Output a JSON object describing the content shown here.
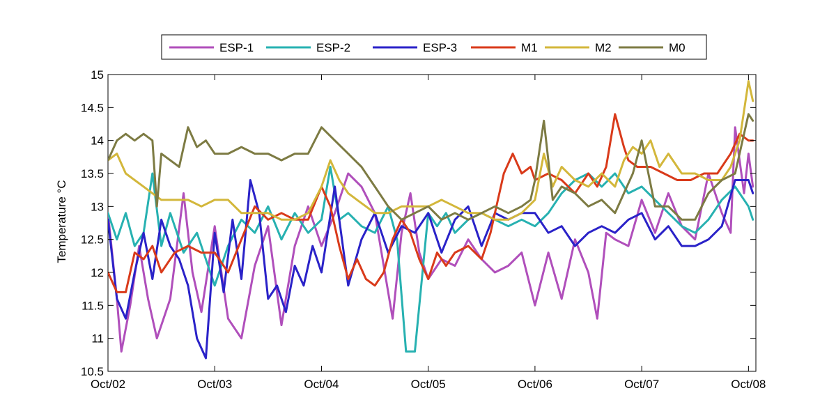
{
  "chart_data": {
    "type": "line",
    "title": "",
    "xlabel": "",
    "ylabel": "Temperature °C",
    "x_unit": "date",
    "xlim": [
      "Oct/02",
      "Oct/08 01:40"
    ],
    "ylim": [
      10.5,
      15
    ],
    "x_ticks": [
      "Oct/02",
      "Oct/03",
      "Oct/04",
      "Oct/05",
      "Oct/06",
      "Oct/07",
      "Oct/08"
    ],
    "y_ticks": [
      "10.5",
      "11",
      "11.5",
      "12",
      "12.5",
      "13",
      "13.5",
      "14",
      "14.5",
      "15"
    ],
    "grid": false,
    "legend_position": "top-center, horizontal, outside",
    "series": [
      {
        "name": "ESP-1",
        "color": "#b04fbb",
        "x": [
          "Oct/02 00:00",
          "Oct/02 02:00",
          "Oct/02 03:00",
          "Oct/02 05:00",
          "Oct/02 07:00",
          "Oct/02 09:00",
          "Oct/02 11:00",
          "Oct/02 14:00",
          "Oct/02 17:00",
          "Oct/02 19:00",
          "Oct/02 21:00",
          "Oct/03 00:00",
          "Oct/03 03:00",
          "Oct/03 06:00",
          "Oct/03 09:00",
          "Oct/03 12:00",
          "Oct/03 15:00",
          "Oct/03 18:00",
          "Oct/03 21:00",
          "Oct/04 00:00",
          "Oct/04 03:00",
          "Oct/04 06:00",
          "Oct/04 09:00",
          "Oct/04 12:00",
          "Oct/04 14:00",
          "Oct/04 16:00",
          "Oct/04 18:00",
          "Oct/04 20:00",
          "Oct/04 22:00",
          "Oct/05 00:00",
          "Oct/05 03:00",
          "Oct/05 06:00",
          "Oct/05 09:00",
          "Oct/05 12:00",
          "Oct/05 15:00",
          "Oct/05 18:00",
          "Oct/05 21:00",
          "Oct/06 00:00",
          "Oct/06 03:00",
          "Oct/06 06:00",
          "Oct/06 09:00",
          "Oct/06 12:00",
          "Oct/06 14:00",
          "Oct/06 16:00",
          "Oct/06 18:00",
          "Oct/06 21:00",
          "Oct/07 00:00",
          "Oct/07 03:00",
          "Oct/07 06:00",
          "Oct/07 09:00",
          "Oct/07 12:00",
          "Oct/07 15:00",
          "Oct/07 18:00",
          "Oct/07 20:00",
          "Oct/07 21:00",
          "Oct/07 23:00",
          "Oct/08 00:00",
          "Oct/08 01:00"
        ],
        "values": [
          12.9,
          11.6,
          10.8,
          11.5,
          12.4,
          11.6,
          11.0,
          11.6,
          13.2,
          12.0,
          11.4,
          12.7,
          11.3,
          11.0,
          12.1,
          12.7,
          11.2,
          12.4,
          13.0,
          12.4,
          12.9,
          13.5,
          13.3,
          12.9,
          12.1,
          11.3,
          12.6,
          13.2,
          12.3,
          11.9,
          12.2,
          12.1,
          12.5,
          12.2,
          12.0,
          12.1,
          12.3,
          11.5,
          12.3,
          11.6,
          12.5,
          12.0,
          11.3,
          12.6,
          12.5,
          12.4,
          13.1,
          12.6,
          13.2,
          12.7,
          12.5,
          13.5,
          12.9,
          12.6,
          14.2,
          13.2,
          13.8,
          13.3
        ]
      },
      {
        "name": "ESP-2",
        "color": "#27b1b1",
        "x": [
          "Oct/02 00:00",
          "Oct/02 02:00",
          "Oct/02 04:00",
          "Oct/02 06:00",
          "Oct/02 08:00",
          "Oct/02 10:00",
          "Oct/02 12:00",
          "Oct/02 14:00",
          "Oct/02 17:00",
          "Oct/02 20:00",
          "Oct/03 00:00",
          "Oct/03 03:00",
          "Oct/03 06:00",
          "Oct/03 09:00",
          "Oct/03 12:00",
          "Oct/03 15:00",
          "Oct/03 18:00",
          "Oct/03 21:00",
          "Oct/04 00:00",
          "Oct/04 02:00",
          "Oct/04 04:00",
          "Oct/04 06:00",
          "Oct/04 09:00",
          "Oct/04 12:00",
          "Oct/04 15:00",
          "Oct/04 17:00",
          "Oct/04 19:00",
          "Oct/04 21:00",
          "Oct/05 00:00",
          "Oct/05 02:00",
          "Oct/05 04:00",
          "Oct/05 06:00",
          "Oct/05 09:00",
          "Oct/05 12:00",
          "Oct/05 15:00",
          "Oct/05 18:00",
          "Oct/05 21:00",
          "Oct/06 00:00",
          "Oct/06 03:00",
          "Oct/06 06:00",
          "Oct/06 09:00",
          "Oct/06 12:00",
          "Oct/06 15:00",
          "Oct/06 18:00",
          "Oct/06 21:00",
          "Oct/07 00:00",
          "Oct/07 03:00",
          "Oct/07 06:00",
          "Oct/07 09:00",
          "Oct/07 12:00",
          "Oct/07 15:00",
          "Oct/07 18:00",
          "Oct/07 21:00",
          "Oct/08 00:00",
          "Oct/08 01:00"
        ],
        "values": [
          12.9,
          12.5,
          12.9,
          12.4,
          12.6,
          13.5,
          12.4,
          12.9,
          12.3,
          12.6,
          11.8,
          12.4,
          12.8,
          12.6,
          13.0,
          12.5,
          12.9,
          12.6,
          12.8,
          13.6,
          12.8,
          12.9,
          12.7,
          12.6,
          13.0,
          12.5,
          10.8,
          10.8,
          12.9,
          12.7,
          12.9,
          12.6,
          12.8,
          12.9,
          12.8,
          12.7,
          12.8,
          12.7,
          12.9,
          13.2,
          13.4,
          13.5,
          13.3,
          13.5,
          13.2,
          13.3,
          13.1,
          12.9,
          12.7,
          12.6,
          12.8,
          13.1,
          13.3,
          13.0,
          12.8
        ]
      },
      {
        "name": "ESP-3",
        "color": "#2a22c8",
        "x": [
          "Oct/02 00:00",
          "Oct/02 02:00",
          "Oct/02 04:00",
          "Oct/02 06:00",
          "Oct/02 08:00",
          "Oct/02 10:00",
          "Oct/02 12:00",
          "Oct/02 14:00",
          "Oct/02 16:00",
          "Oct/02 18:00",
          "Oct/02 20:00",
          "Oct/02 22:00",
          "Oct/03 00:00",
          "Oct/03 02:00",
          "Oct/03 04:00",
          "Oct/03 06:00",
          "Oct/03 08:00",
          "Oct/03 10:00",
          "Oct/03 12:00",
          "Oct/03 14:00",
          "Oct/03 16:00",
          "Oct/03 18:00",
          "Oct/03 20:00",
          "Oct/03 22:00",
          "Oct/04 00:00",
          "Oct/04 03:00",
          "Oct/04 06:00",
          "Oct/04 09:00",
          "Oct/04 12:00",
          "Oct/04 15:00",
          "Oct/04 18:00",
          "Oct/04 21:00",
          "Oct/05 00:00",
          "Oct/05 03:00",
          "Oct/05 06:00",
          "Oct/05 09:00",
          "Oct/05 12:00",
          "Oct/05 15:00",
          "Oct/05 18:00",
          "Oct/05 21:00",
          "Oct/06 00:00",
          "Oct/06 03:00",
          "Oct/06 06:00",
          "Oct/06 09:00",
          "Oct/06 12:00",
          "Oct/06 15:00",
          "Oct/06 18:00",
          "Oct/06 21:00",
          "Oct/07 00:00",
          "Oct/07 03:00",
          "Oct/07 06:00",
          "Oct/07 09:00",
          "Oct/07 12:00",
          "Oct/07 15:00",
          "Oct/07 18:00",
          "Oct/07 21:00",
          "Oct/08 00:00",
          "Oct/08 01:00"
        ],
        "values": [
          12.8,
          11.6,
          11.3,
          12.0,
          12.6,
          11.9,
          12.8,
          12.4,
          12.2,
          11.8,
          11.0,
          10.7,
          12.6,
          11.7,
          12.8,
          11.9,
          13.4,
          12.9,
          11.6,
          11.8,
          11.4,
          12.1,
          11.8,
          12.4,
          12.0,
          13.3,
          11.8,
          12.5,
          12.9,
          12.3,
          12.7,
          12.6,
          12.9,
          12.3,
          12.8,
          13.0,
          12.4,
          12.9,
          12.8,
          12.9,
          12.9,
          12.6,
          12.7,
          12.4,
          12.6,
          12.7,
          12.6,
          12.8,
          12.9,
          12.5,
          12.7,
          12.4,
          12.4,
          12.5,
          12.7,
          13.4,
          13.4,
          13.2
        ]
      },
      {
        "name": "M1",
        "color": "#d93a1a",
        "x": [
          "Oct/02 00:00",
          "Oct/02 02:00",
          "Oct/02 04:00",
          "Oct/02 06:00",
          "Oct/02 08:00",
          "Oct/02 10:00",
          "Oct/02 12:00",
          "Oct/02 15:00",
          "Oct/02 18:00",
          "Oct/02 21:00",
          "Oct/03 00:00",
          "Oct/03 03:00",
          "Oct/03 06:00",
          "Oct/03 09:00",
          "Oct/03 12:00",
          "Oct/03 15:00",
          "Oct/03 18:00",
          "Oct/03 21:00",
          "Oct/04 00:00",
          "Oct/04 02:00",
          "Oct/04 04:00",
          "Oct/04 06:00",
          "Oct/04 08:00",
          "Oct/04 10:00",
          "Oct/04 12:00",
          "Oct/04 14:00",
          "Oct/04 16:00",
          "Oct/04 18:00",
          "Oct/04 20:00",
          "Oct/04 22:00",
          "Oct/05 00:00",
          "Oct/05 02:00",
          "Oct/05 04:00",
          "Oct/05 06:00",
          "Oct/05 09:00",
          "Oct/05 12:00",
          "Oct/05 14:00",
          "Oct/05 15:00",
          "Oct/05 17:00",
          "Oct/05 19:00",
          "Oct/05 21:00",
          "Oct/05 23:00",
          "Oct/06 00:00",
          "Oct/06 03:00",
          "Oct/06 06:00",
          "Oct/06 09:00",
          "Oct/06 12:00",
          "Oct/06 14:00",
          "Oct/06 16:00",
          "Oct/06 18:00",
          "Oct/06 20:00",
          "Oct/06 21:00",
          "Oct/06 23:00",
          "Oct/07 02:00",
          "Oct/07 05:00",
          "Oct/07 08:00",
          "Oct/07 11:00",
          "Oct/07 14:00",
          "Oct/07 17:00",
          "Oct/07 20:00",
          "Oct/07 22:00",
          "Oct/08 00:00",
          "Oct/08 01:00"
        ],
        "values": [
          12.0,
          11.7,
          11.7,
          12.3,
          12.2,
          12.4,
          12.0,
          12.3,
          12.4,
          12.3,
          12.3,
          12.0,
          12.5,
          13.0,
          12.8,
          12.9,
          12.8,
          12.8,
          13.3,
          13.0,
          12.4,
          11.9,
          12.2,
          11.9,
          11.8,
          12.0,
          12.5,
          12.8,
          12.6,
          12.2,
          11.9,
          12.3,
          12.1,
          12.3,
          12.4,
          12.2,
          12.6,
          12.9,
          13.5,
          13.8,
          13.5,
          13.6,
          13.4,
          13.5,
          13.4,
          13.2,
          13.5,
          13.3,
          13.6,
          14.4,
          13.9,
          13.7,
          13.6,
          13.6,
          13.5,
          13.4,
          13.4,
          13.5,
          13.5,
          13.8,
          14.1,
          14.0,
          14.0
        ]
      },
      {
        "name": "M2",
        "color": "#d3b73b",
        "x": [
          "Oct/02 00:00",
          "Oct/02 02:00",
          "Oct/02 04:00",
          "Oct/02 06:00",
          "Oct/02 08:00",
          "Oct/02 10:00",
          "Oct/02 12:00",
          "Oct/02 15:00",
          "Oct/02 18:00",
          "Oct/02 21:00",
          "Oct/03 00:00",
          "Oct/03 03:00",
          "Oct/03 06:00",
          "Oct/03 09:00",
          "Oct/03 12:00",
          "Oct/03 15:00",
          "Oct/03 18:00",
          "Oct/03 21:00",
          "Oct/04 00:00",
          "Oct/04 02:00",
          "Oct/04 04:00",
          "Oct/04 06:00",
          "Oct/04 08:00",
          "Oct/04 10:00",
          "Oct/04 12:00",
          "Oct/04 15:00",
          "Oct/04 18:00",
          "Oct/04 21:00",
          "Oct/05 00:00",
          "Oct/05 03:00",
          "Oct/05 06:00",
          "Oct/05 09:00",
          "Oct/05 12:00",
          "Oct/05 15:00",
          "Oct/05 18:00",
          "Oct/05 21:00",
          "Oct/06 00:00",
          "Oct/06 02:00",
          "Oct/06 04:00",
          "Oct/06 06:00",
          "Oct/06 09:00",
          "Oct/06 12:00",
          "Oct/06 15:00",
          "Oct/06 18:00",
          "Oct/06 20:00",
          "Oct/06 22:00",
          "Oct/07 00:00",
          "Oct/07 02:00",
          "Oct/07 04:00",
          "Oct/07 06:00",
          "Oct/07 09:00",
          "Oct/07 12:00",
          "Oct/07 15:00",
          "Oct/07 18:00",
          "Oct/07 20:00",
          "Oct/07 22:00",
          "Oct/08 00:00",
          "Oct/08 01:00"
        ],
        "values": [
          13.7,
          13.8,
          13.5,
          13.4,
          13.3,
          13.2,
          13.1,
          13.1,
          13.1,
          13.0,
          13.1,
          13.1,
          12.9,
          12.9,
          12.9,
          12.8,
          12.8,
          12.9,
          13.3,
          13.7,
          13.4,
          13.2,
          13.1,
          13.0,
          12.9,
          12.9,
          13.0,
          13.0,
          13.0,
          13.1,
          13.0,
          12.9,
          12.9,
          12.8,
          12.8,
          12.9,
          13.1,
          13.8,
          13.3,
          13.6,
          13.4,
          13.3,
          13.5,
          13.3,
          13.7,
          13.9,
          13.8,
          14.0,
          13.6,
          13.8,
          13.5,
          13.5,
          13.4,
          13.4,
          13.6,
          14.0,
          14.9,
          14.6
        ]
      },
      {
        "name": "M0",
        "color": "#7d7b43",
        "x": [
          "Oct/02 00:00",
          "Oct/02 02:00",
          "Oct/02 04:00",
          "Oct/02 06:00",
          "Oct/02 08:00",
          "Oct/02 10:00",
          "Oct/02 11:00",
          "Oct/02 12:00",
          "Oct/02 14:00",
          "Oct/02 16:00",
          "Oct/02 18:00",
          "Oct/02 20:00",
          "Oct/02 22:00",
          "Oct/03 00:00",
          "Oct/03 03:00",
          "Oct/03 06:00",
          "Oct/03 09:00",
          "Oct/03 12:00",
          "Oct/03 15:00",
          "Oct/03 18:00",
          "Oct/03 21:00",
          "Oct/04 00:00",
          "Oct/04 03:00",
          "Oct/04 06:00",
          "Oct/04 09:00",
          "Oct/04 12:00",
          "Oct/04 15:00",
          "Oct/04 18:00",
          "Oct/04 21:00",
          "Oct/05 00:00",
          "Oct/05 03:00",
          "Oct/05 06:00",
          "Oct/05 09:00",
          "Oct/05 12:00",
          "Oct/05 15:00",
          "Oct/05 18:00",
          "Oct/05 21:00",
          "Oct/05 23:00",
          "Oct/06 00:00",
          "Oct/06 02:00",
          "Oct/06 04:00",
          "Oct/06 06:00",
          "Oct/06 09:00",
          "Oct/06 12:00",
          "Oct/06 15:00",
          "Oct/06 18:00",
          "Oct/06 20:00",
          "Oct/06 22:00",
          "Oct/07 00:00",
          "Oct/07 03:00",
          "Oct/07 06:00",
          "Oct/07 09:00",
          "Oct/07 12:00",
          "Oct/07 15:00",
          "Oct/07 18:00",
          "Oct/07 21:00",
          "Oct/08 00:00",
          "Oct/08 01:00"
        ],
        "values": [
          13.7,
          14.0,
          14.1,
          14.0,
          14.1,
          14.0,
          13.0,
          13.8,
          13.7,
          13.6,
          14.2,
          13.9,
          14.0,
          13.8,
          13.8,
          13.9,
          13.8,
          13.8,
          13.7,
          13.8,
          13.8,
          14.2,
          14.0,
          13.8,
          13.6,
          13.3,
          13.0,
          12.8,
          12.9,
          13.0,
          12.8,
          12.9,
          12.8,
          12.9,
          13.0,
          12.9,
          13.0,
          13.1,
          13.4,
          14.3,
          13.1,
          13.3,
          13.2,
          13.0,
          13.1,
          12.9,
          13.2,
          13.5,
          14.0,
          13.0,
          13.0,
          12.8,
          12.8,
          13.2,
          13.4,
          13.5,
          14.4,
          14.3
        ]
      }
    ]
  }
}
